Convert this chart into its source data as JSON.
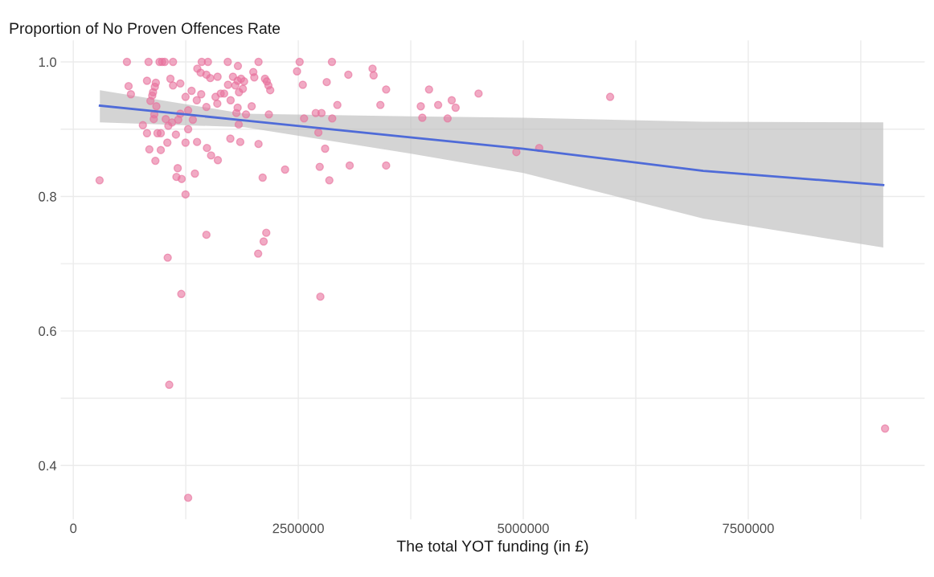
{
  "chart_data": {
    "type": "scatter",
    "title": "Proportion of No Proven Offences Rate",
    "xlabel": "The total YOT funding (in £)",
    "xlim": [
      -140000,
      9460000
    ],
    "ylim": [
      0.32,
      1.032
    ],
    "xticks": [
      0,
      {
        "value": 1250000,
        "label": null
      },
      2500000,
      {
        "value": 3750000,
        "label": null
      },
      5000000,
      {
        "value": 6250000,
        "label": null
      },
      7500000,
      {
        "value": 8750000,
        "label": null
      }
    ],
    "yticks": [
      0.4,
      {
        "value": 0.5,
        "label": null
      },
      0.6,
      {
        "value": 0.7,
        "label": null
      },
      0.8,
      {
        "value": 0.9,
        "label": null
      },
      {
        "value": 1.0,
        "label": "1.0"
      }
    ],
    "grid": true,
    "series": [
      {
        "marker": "circle",
        "color": "#e8729c",
        "x": [
          596000,
          836000,
          958000,
          987000,
          1016000,
          1108000,
          1427000,
          1496000,
          1716000,
          2058000,
          2515000,
          1829000,
          1378000,
          1415000,
          1479000,
          1522000,
          1603000,
          1774000,
          1826000,
          1864000,
          1898000,
          2000000,
          2011000,
          2130000,
          2150000,
          2168000,
          2188000,
          2486000,
          2550000,
          614000,
          640000,
          819000,
          917000,
          906000,
          886000,
          877000,
          1079000,
          1108000,
          1189000,
          1314000,
          1247000,
          1421000,
          1372000,
          1479000,
          1580000,
          1638000,
          1600000,
          1676000,
          1719000,
          1748000,
          1800000,
          1841000,
          1884000,
          1826000,
          1812000,
          1838000,
          1919000,
          1982000,
          2173000,
          2564000,
          857000,
          923000,
          900000,
          894000,
          1027000,
          1056000,
          1097000,
          1166000,
          1189000,
          1276000,
          1328000,
          1276000,
          773000,
          819000,
          935000,
          972000,
          1140000,
          1247000,
          1375000,
          1485000,
          1531000,
          1606000,
          1745000,
          1855000,
          2058000,
          845000,
          972000,
          1045000,
          912000,
          1160000,
          1146000,
          1204000,
          1351000,
          2353000,
          2104000,
          292000,
          1247000,
          1479000,
          2144000,
          2115000,
          2723000,
          2738000,
          2874000,
          3056000,
          3325000,
          3337000,
          3476000,
          2816000,
          2934000,
          3412000,
          2694000,
          2758000,
          2877000,
          2798000,
          3071000,
          3476000,
          2845000,
          3953000,
          4503000,
          3861000,
          4054000,
          4205000,
          4248000,
          3878000,
          4159000,
          4923000,
          5177000,
          5965000,
          1049000,
          1200000,
          1066000,
          1276000,
          2054000,
          2745000,
          9020000
        ],
        "values": [
          1.0,
          1.0,
          1.0,
          1.0,
          1.0,
          1.0,
          1.0,
          1.0,
          1.0,
          1.0,
          1.0,
          0.994,
          0.99,
          0.984,
          0.981,
          0.976,
          0.978,
          0.978,
          0.972,
          0.975,
          0.971,
          0.985,
          0.977,
          0.975,
          0.971,
          0.965,
          0.958,
          0.986,
          0.966,
          0.964,
          0.952,
          0.972,
          0.969,
          0.963,
          0.955,
          0.95,
          0.975,
          0.965,
          0.968,
          0.957,
          0.948,
          0.952,
          0.943,
          0.933,
          0.948,
          0.953,
          0.938,
          0.953,
          0.966,
          0.943,
          0.965,
          0.955,
          0.96,
          0.932,
          0.924,
          0.907,
          0.922,
          0.934,
          0.922,
          0.916,
          0.942,
          0.934,
          0.922,
          0.915,
          0.915,
          0.905,
          0.91,
          0.914,
          0.923,
          0.928,
          0.914,
          0.9,
          0.906,
          0.894,
          0.894,
          0.894,
          0.892,
          0.88,
          0.881,
          0.872,
          0.861,
          0.854,
          0.886,
          0.881,
          0.878,
          0.87,
          0.869,
          0.88,
          0.853,
          0.842,
          0.829,
          0.826,
          0.834,
          0.84,
          0.828,
          0.824,
          0.803,
          0.743,
          0.746,
          0.733,
          0.895,
          0.844,
          1.0,
          0.981,
          0.99,
          0.98,
          0.959,
          0.97,
          0.936,
          0.936,
          0.924,
          0.924,
          0.916,
          0.871,
          0.846,
          0.846,
          0.824,
          0.959,
          0.953,
          0.934,
          0.936,
          0.943,
          0.932,
          0.917,
          0.916,
          0.866,
          0.872,
          0.948,
          0.709,
          0.655,
          0.52,
          0.352,
          0.715,
          0.651,
          0.455
        ]
      },
      {
        "type": "line",
        "color": "#4f6bd8",
        "x": [
          295000,
          1900000,
          3740000,
          5000000,
          7000000,
          9000000
        ],
        "values": [
          0.935,
          0.913,
          0.888,
          0.871,
          0.838,
          0.817
        ],
        "lower": [
          0.91,
          0.903,
          0.864,
          0.835,
          0.767,
          0.724
        ],
        "upper": [
          0.958,
          0.923,
          0.919,
          0.917,
          0.911,
          0.91
        ]
      }
    ]
  }
}
